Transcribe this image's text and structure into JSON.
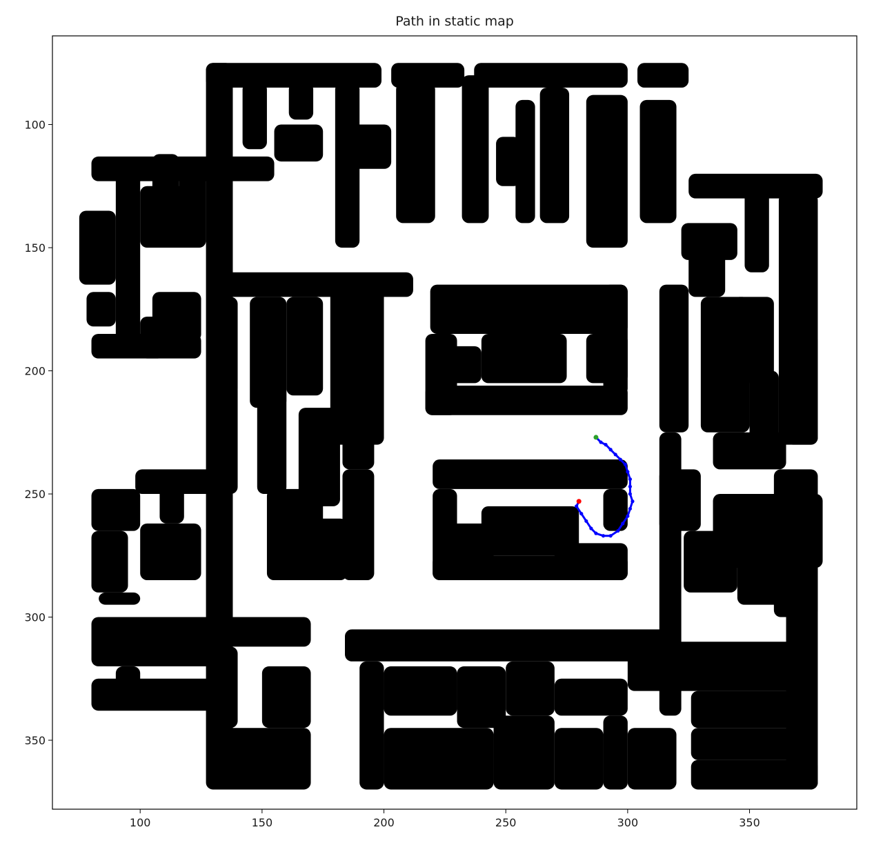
{
  "chart_data": {
    "type": "scatter",
    "title": "Path in static map",
    "xlabel": "",
    "ylabel": "",
    "xlim": [
      64,
      394
    ],
    "ylim": [
      378,
      64
    ],
    "y_inverted": true,
    "grid": false,
    "x_ticks": [
      100,
      150,
      200,
      250,
      300,
      350
    ],
    "y_ticks": [
      100,
      150,
      200,
      250,
      300,
      350
    ],
    "colors": {
      "obstacle": "#000000",
      "path": "#0000ff",
      "start": "#2ca02c",
      "goal": "#ff0000"
    },
    "series": [
      {
        "kind": "path",
        "color": "#0000ff",
        "points": [
          [
            287,
            227
          ],
          [
            289,
            229
          ],
          [
            291,
            230
          ],
          [
            293,
            232
          ],
          [
            295,
            234
          ],
          [
            297,
            236
          ],
          [
            299,
            238
          ],
          [
            300,
            241
          ],
          [
            301,
            244
          ],
          [
            301,
            247
          ],
          [
            301,
            250
          ],
          [
            302,
            253
          ],
          [
            301,
            256
          ],
          [
            300,
            259
          ],
          [
            298,
            262
          ],
          [
            296,
            265
          ],
          [
            293,
            267
          ],
          [
            290,
            267
          ],
          [
            287,
            266
          ],
          [
            285,
            264
          ],
          [
            283,
            261
          ],
          [
            281,
            258
          ],
          [
            279,
            255
          ],
          [
            280,
            253
          ]
        ]
      },
      {
        "kind": "start",
        "color": "#2ca02c",
        "points": [
          [
            287,
            227
          ]
        ]
      },
      {
        "kind": "goal",
        "color": "#ff0000",
        "points": [
          [
            280,
            253
          ]
        ]
      }
    ],
    "obstacles": {
      "color": "#000000",
      "rects": [
        [
          127,
          75,
          199,
          85
        ],
        [
          203,
          75,
          233,
          85
        ],
        [
          237,
          75,
          300,
          85
        ],
        [
          304,
          75,
          325,
          85
        ],
        [
          127,
          75,
          138,
          370
        ],
        [
          142,
          83,
          152,
          110
        ],
        [
          161,
          83,
          171,
          98
        ],
        [
          180,
          83,
          190,
          150
        ],
        [
          205,
          83,
          221,
          140
        ],
        [
          232,
          80,
          243,
          140
        ],
        [
          254,
          90,
          262,
          140
        ],
        [
          264,
          85,
          276,
          140
        ],
        [
          283,
          88,
          300,
          150
        ],
        [
          305,
          90,
          320,
          140
        ],
        [
          246,
          105,
          256,
          125
        ],
        [
          155,
          100,
          175,
          115
        ],
        [
          186,
          100,
          203,
          118
        ],
        [
          80,
          113,
          155,
          123
        ],
        [
          90,
          118,
          100,
          190
        ],
        [
          100,
          125,
          125,
          150
        ],
        [
          105,
          112,
          116,
          140
        ],
        [
          116,
          120,
          127,
          150
        ],
        [
          75,
          135,
          90,
          165
        ],
        [
          325,
          120,
          380,
          130
        ],
        [
          348,
          126,
          358,
          160
        ],
        [
          362,
          128,
          378,
          230
        ],
        [
          322,
          140,
          345,
          155
        ],
        [
          325,
          150,
          340,
          170
        ],
        [
          129,
          160,
          212,
          170
        ],
        [
          145,
          170,
          160,
          215
        ],
        [
          160,
          170,
          175,
          210
        ],
        [
          130,
          170,
          140,
          210
        ],
        [
          178,
          165,
          200,
          230
        ],
        [
          183,
          190,
          196,
          240
        ],
        [
          183,
          240,
          196,
          285
        ],
        [
          165,
          215,
          182,
          255
        ],
        [
          148,
          205,
          160,
          250
        ],
        [
          130,
          205,
          140,
          250
        ],
        [
          78,
          168,
          90,
          182
        ],
        [
          80,
          185,
          125,
          195
        ],
        [
          105,
          168,
          125,
          188
        ],
        [
          100,
          178,
          110,
          195
        ],
        [
          219,
          165,
          300,
          185
        ],
        [
          217,
          185,
          230,
          218
        ],
        [
          217,
          206,
          300,
          218
        ],
        [
          240,
          185,
          275,
          205
        ],
        [
          225,
          190,
          240,
          205
        ],
        [
          283,
          185,
          300,
          205
        ],
        [
          290,
          165,
          300,
          210
        ],
        [
          220,
          236,
          300,
          248
        ],
        [
          220,
          248,
          230,
          285
        ],
        [
          220,
          275,
          300,
          285
        ],
        [
          240,
          255,
          280,
          275
        ],
        [
          225,
          262,
          245,
          280
        ],
        [
          290,
          248,
          300,
          265
        ],
        [
          270,
          270,
          300,
          285
        ],
        [
          313,
          165,
          325,
          225
        ],
        [
          313,
          225,
          322,
          340
        ],
        [
          313,
          240,
          330,
          265
        ],
        [
          330,
          170,
          350,
          225
        ],
        [
          335,
          225,
          365,
          240
        ],
        [
          335,
          250,
          380,
          280
        ],
        [
          343,
          170,
          360,
          205
        ],
        [
          350,
          200,
          362,
          232
        ],
        [
          365,
          185,
          378,
          230
        ],
        [
          323,
          265,
          345,
          290
        ],
        [
          345,
          275,
          378,
          295
        ],
        [
          360,
          240,
          378,
          300
        ],
        [
          98,
          240,
          138,
          250
        ],
        [
          80,
          248,
          100,
          265
        ],
        [
          80,
          265,
          95,
          290
        ],
        [
          83,
          290,
          100,
          295
        ],
        [
          100,
          262,
          125,
          285
        ],
        [
          108,
          242,
          118,
          262
        ],
        [
          80,
          300,
          138,
          320
        ],
        [
          90,
          320,
          100,
          330
        ],
        [
          80,
          325,
          138,
          338
        ],
        [
          129,
          300,
          170,
          312
        ],
        [
          129,
          312,
          140,
          345
        ],
        [
          150,
          320,
          170,
          345
        ],
        [
          130,
          345,
          170,
          370
        ],
        [
          152,
          248,
          175,
          285
        ],
        [
          165,
          260,
          185,
          285
        ],
        [
          184,
          305,
          320,
          318
        ],
        [
          190,
          318,
          200,
          370
        ],
        [
          200,
          320,
          230,
          340
        ],
        [
          230,
          320,
          250,
          345
        ],
        [
          250,
          318,
          270,
          340
        ],
        [
          270,
          325,
          300,
          340
        ],
        [
          290,
          340,
          300,
          370
        ],
        [
          300,
          310,
          370,
          330
        ],
        [
          326,
          330,
          370,
          345
        ],
        [
          326,
          345,
          370,
          358
        ],
        [
          326,
          358,
          378,
          370
        ],
        [
          365,
          290,
          378,
          370
        ],
        [
          200,
          345,
          245,
          370
        ],
        [
          245,
          340,
          270,
          370
        ],
        [
          270,
          345,
          290,
          370
        ],
        [
          300,
          345,
          320,
          370
        ]
      ]
    }
  }
}
